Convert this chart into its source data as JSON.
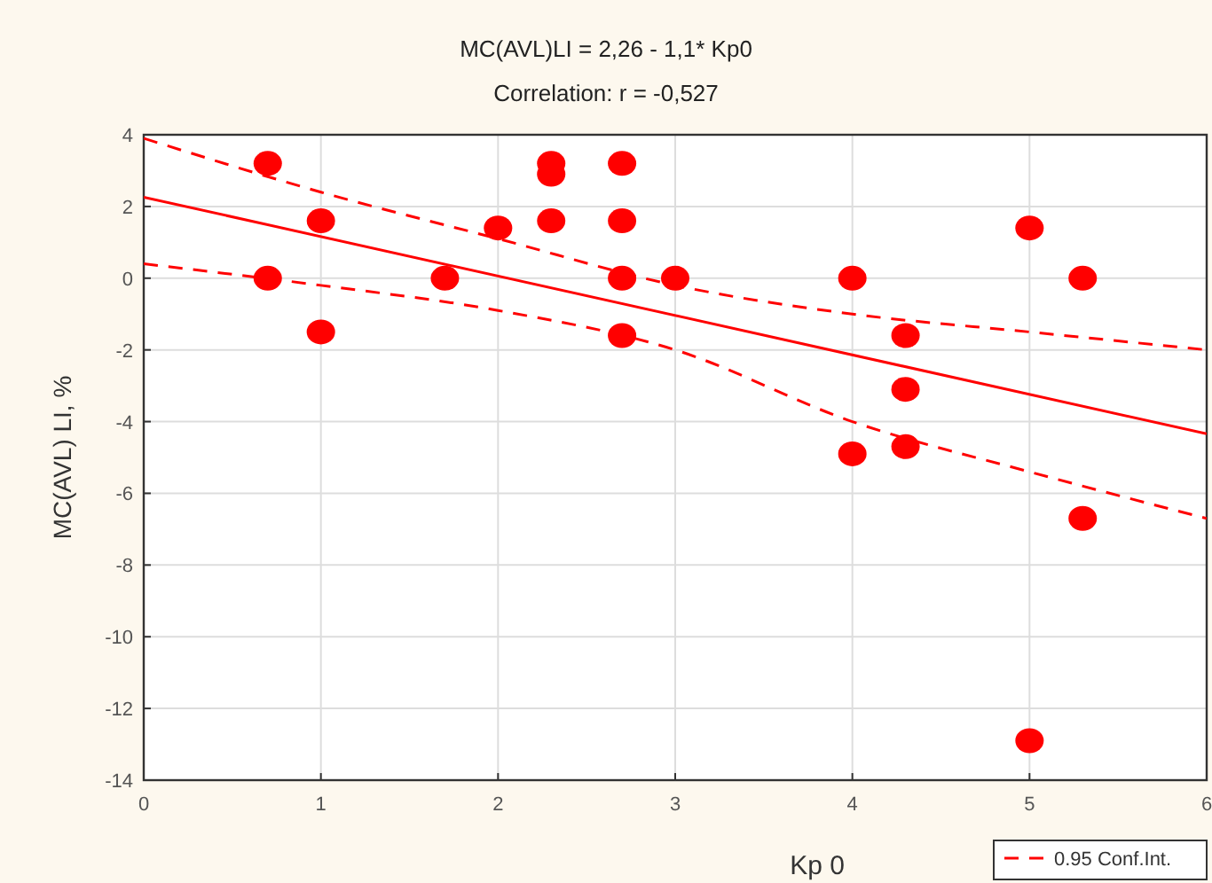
{
  "chart_data": {
    "type": "scatter",
    "title": "MC(AVL)LI = 2,26 - 1,1* Kp0",
    "subtitle": "Correlation: r = -0,527",
    "xlabel": "Kp 0",
    "ylabel": "MC(AVL) LI, %",
    "xlim": [
      0,
      6
    ],
    "xticks": [
      0,
      1,
      2,
      3,
      4,
      5,
      6
    ],
    "ylim": [
      -14,
      4
    ],
    "yticks": [
      -14,
      -12,
      -10,
      -8,
      -6,
      -4,
      -2,
      0,
      2,
      4
    ],
    "grid": true,
    "legend": "bottom right",
    "marker": "circle",
    "series": [
      {
        "color": "#ff0000",
        "x": [
          0.7,
          0.7,
          1,
          1,
          1.7,
          2,
          2.3,
          2.3,
          2.3,
          2.7,
          2.7,
          2.7,
          2.7,
          3,
          4,
          4,
          4.3,
          4.3,
          4.3,
          5,
          5,
          5.3,
          5.3
        ],
        "values": [
          3.2,
          0,
          1.6,
          -1.5,
          0,
          1.4,
          3.2,
          2.9,
          1.6,
          3.2,
          1.6,
          0,
          -1.6,
          0,
          0,
          -4.9,
          -1.6,
          -3.1,
          -4.7,
          1.4,
          -12.9,
          0,
          -6.7
        ]
      },
      {
        "type": "line",
        "color": "#ff0000",
        "line_style": "solid",
        "marker": "none",
        "x": [
          0,
          6
        ],
        "values": [
          2.26,
          -4.34
        ]
      },
      {
        "type": "line",
        "name": "0.95 Conf.Int.",
        "color": "#ff0000",
        "line_style": "dashed",
        "marker": "none",
        "x": [
          0,
          1,
          2,
          3,
          4,
          5,
          6
        ],
        "values": [
          3.9,
          2.4,
          1.1,
          -0.2,
          -1.0,
          -1.5,
          -2.0
        ]
      },
      {
        "type": "line",
        "color": "#ff0000",
        "line_style": "dashed",
        "marker": "none",
        "x": [
          0,
          1,
          2,
          3,
          4,
          5,
          6
        ],
        "values": [
          0.4,
          -0.2,
          -0.9,
          -2.0,
          -4.0,
          -5.4,
          -6.7
        ]
      }
    ]
  }
}
